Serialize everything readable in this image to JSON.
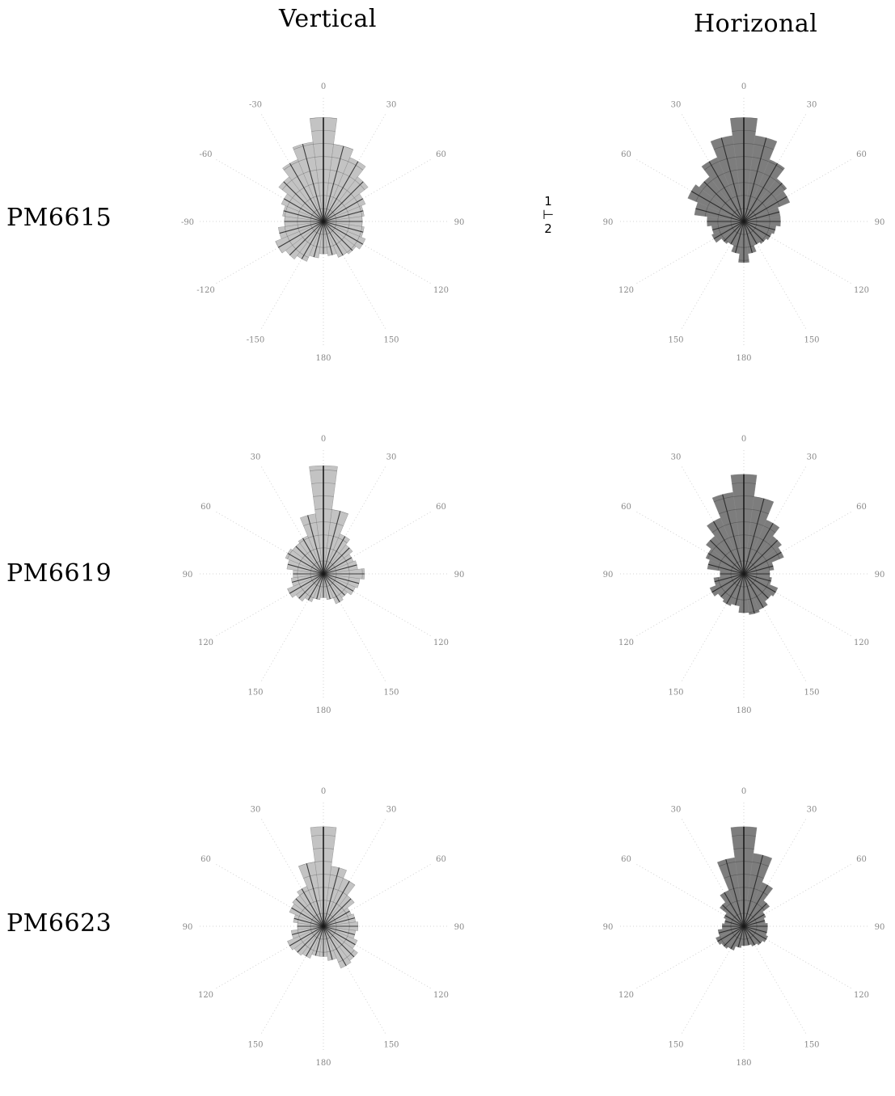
{
  "columns": [
    "Vertical",
    "Horizonal"
  ],
  "rows": [
    "PM6615",
    "PM6619",
    "PM6623"
  ],
  "scale_labels": {
    "top": "1",
    "bottom": "2"
  },
  "colors": {
    "vertical_fill": "#b9b9b9",
    "horizontal_fill": "#6f6f6f",
    "spoke": "#1a1a1a",
    "grid": "#c8c8c8"
  },
  "chart_data": [
    {
      "type": "polar-rose",
      "row": "PM6615",
      "column": "Vertical",
      "angle_ticks": [
        "0",
        "30",
        "60",
        "90",
        "120",
        "150",
        "180",
        "-150",
        "-120",
        "-90",
        "-60",
        "-30"
      ],
      "angles_deg": [
        0,
        15,
        30,
        45,
        60,
        75,
        90,
        105,
        120,
        135,
        150,
        165,
        180,
        -165,
        -150,
        -135,
        -120,
        -105,
        -90,
        -75,
        -60,
        -45,
        -30,
        -15
      ],
      "radius": [
        2.4,
        1.8,
        1.6,
        1.3,
        1.05,
        0.95,
        0.9,
        0.95,
        1.05,
        0.95,
        0.9,
        0.8,
        0.75,
        0.85,
        1.0,
        1.1,
        1.2,
        1.05,
        0.9,
        0.95,
        1.05,
        1.3,
        1.55,
        1.85
      ],
      "rmax": 2.8
    },
    {
      "type": "polar-rose",
      "row": "PM6615",
      "column": "Horizonal",
      "angle_ticks": [
        "0",
        "30",
        "60",
        "90",
        "120",
        "150",
        "180",
        "150",
        "120",
        "90",
        "60",
        "30"
      ],
      "angles_deg": [
        0,
        15,
        30,
        45,
        60,
        75,
        90,
        105,
        120,
        135,
        150,
        165,
        180,
        -165,
        -150,
        -135,
        -120,
        -105,
        -90,
        -75,
        -60,
        -45,
        -30,
        -15
      ],
      "radius": [
        2.4,
        2.0,
        1.55,
        1.25,
        1.15,
        0.85,
        0.85,
        0.75,
        0.7,
        0.65,
        0.6,
        0.75,
        0.95,
        0.75,
        0.6,
        0.65,
        0.8,
        0.75,
        0.85,
        1.15,
        1.4,
        1.3,
        1.6,
        2.0
      ],
      "rmax": 2.8
    },
    {
      "type": "polar-rose",
      "row": "PM6619",
      "column": "Vertical",
      "angle_ticks": [
        "0",
        "30",
        "60",
        "90",
        "120",
        "150",
        "180",
        "150",
        "120",
        "90",
        "60",
        "30"
      ],
      "angles_deg": [
        0,
        15,
        30,
        45,
        60,
        75,
        90,
        105,
        120,
        135,
        150,
        165,
        180,
        -165,
        -150,
        -135,
        -120,
        -105,
        -90,
        -75,
        -60,
        -45,
        -30,
        -15
      ],
      "radius": [
        2.5,
        1.5,
        1.0,
        0.85,
        0.75,
        0.8,
        0.95,
        0.85,
        0.8,
        0.7,
        0.75,
        0.6,
        0.55,
        0.6,
        0.7,
        0.8,
        0.9,
        0.75,
        0.7,
        0.85,
        0.95,
        0.9,
        0.95,
        1.4
      ],
      "rmax": 2.8
    },
    {
      "type": "polar-rose",
      "row": "PM6619",
      "column": "Horizonal",
      "angle_ticks": [
        "0",
        "30",
        "60",
        "90",
        "120",
        "150",
        "180",
        "150",
        "120",
        "90",
        "60",
        "30"
      ],
      "angles_deg": [
        0,
        15,
        30,
        45,
        60,
        75,
        90,
        105,
        120,
        135,
        150,
        165,
        180,
        -165,
        -150,
        -135,
        -120,
        -105,
        -90,
        -75,
        -60,
        -45,
        -30,
        -15
      ],
      "radius": [
        2.3,
        1.8,
        1.35,
        1.1,
        1.0,
        0.7,
        0.6,
        0.65,
        0.85,
        0.8,
        0.9,
        0.95,
        0.9,
        0.75,
        0.8,
        0.75,
        0.85,
        0.7,
        0.55,
        0.85,
        0.95,
        1.1,
        1.4,
        1.9
      ],
      "rmax": 2.8
    },
    {
      "type": "polar-rose",
      "row": "PM6623",
      "column": "Vertical",
      "angle_ticks": [
        "0",
        "30",
        "60",
        "90",
        "120",
        "150",
        "180",
        "150",
        "120",
        "90",
        "60",
        "30"
      ],
      "angles_deg": [
        0,
        15,
        30,
        45,
        60,
        75,
        90,
        105,
        120,
        135,
        150,
        165,
        180,
        -165,
        -150,
        -135,
        -120,
        -105,
        -90,
        -75,
        -60,
        -45,
        -30,
        -15
      ],
      "radius": [
        2.3,
        1.4,
        1.2,
        0.9,
        0.7,
        0.75,
        0.8,
        0.75,
        0.85,
        1.0,
        1.05,
        0.8,
        0.7,
        0.7,
        0.8,
        0.85,
        0.9,
        0.75,
        0.6,
        0.7,
        0.85,
        0.9,
        1.0,
        1.5
      ],
      "rmax": 2.8
    },
    {
      "type": "polar-rose",
      "row": "PM6623",
      "column": "Horizonal",
      "angle_ticks": [
        "0",
        "30",
        "60",
        "90",
        "120",
        "150",
        "180",
        "150",
        "120",
        "90",
        "60",
        "30"
      ],
      "angles_deg": [
        0,
        15,
        30,
        45,
        60,
        75,
        90,
        105,
        120,
        135,
        150,
        165,
        180,
        -165,
        -150,
        -135,
        -120,
        -105,
        -90,
        -75,
        -60,
        -45,
        -30,
        -15
      ],
      "radius": [
        2.3,
        1.7,
        1.1,
        0.75,
        0.55,
        0.5,
        0.55,
        0.55,
        0.6,
        0.55,
        0.5,
        0.45,
        0.45,
        0.5,
        0.6,
        0.65,
        0.7,
        0.6,
        0.5,
        0.45,
        0.5,
        0.7,
        0.9,
        1.6
      ],
      "rmax": 2.8
    }
  ]
}
